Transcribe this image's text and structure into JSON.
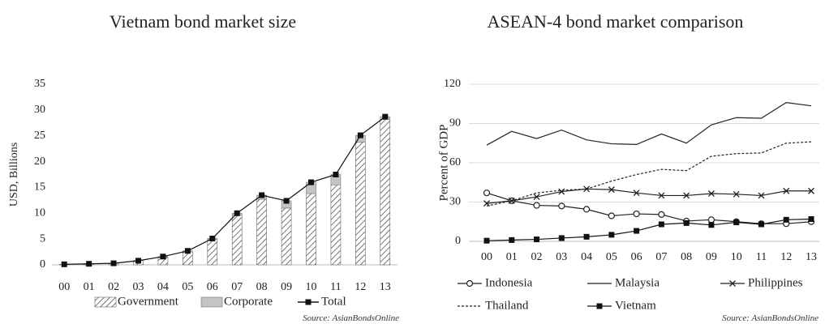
{
  "chart_data": [
    {
      "type": "bar",
      "title": "Vietnam bond market size",
      "ylabel": "USD, Billions",
      "xlabel": "",
      "ylim": [
        0,
        35
      ],
      "yticks": [
        0,
        5,
        10,
        15,
        20,
        25,
        30,
        35
      ],
      "categories": [
        "00",
        "01",
        "02",
        "03",
        "04",
        "05",
        "06",
        "07",
        "08",
        "09",
        "10",
        "11",
        "12",
        "13"
      ],
      "stacked": true,
      "series": [
        {
          "name": "Government",
          "kind": "bar",
          "pattern": "diagonal-hatch",
          "color": "#555555",
          "values": [
            0.1,
            0.2,
            0.3,
            0.8,
            1.5,
            2.5,
            4.9,
            9.6,
            12.7,
            11.0,
            13.8,
            15.5,
            23.8,
            28.2
          ]
        },
        {
          "name": "Corporate",
          "kind": "bar",
          "color": "#c4c4c4",
          "values": [
            0.0,
            0.0,
            0.0,
            0.0,
            0.1,
            0.2,
            0.2,
            0.4,
            0.8,
            1.4,
            2.2,
            2.0,
            1.3,
            0.5
          ]
        },
        {
          "name": "Total",
          "kind": "line",
          "marker": "square",
          "color": "#111111",
          "values": [
            0.1,
            0.2,
            0.3,
            0.8,
            1.6,
            2.7,
            5.1,
            10.0,
            13.5,
            12.4,
            16.0,
            17.5,
            25.1,
            28.7
          ]
        }
      ],
      "legend_position": "bottom",
      "source": "Source: AsianBondsOnline"
    },
    {
      "type": "line",
      "title": "ASEAN-4 bond market comparison",
      "ylabel": "Percent of GDP",
      "xlabel": "",
      "ylim": [
        0,
        120
      ],
      "yticks": [
        0,
        30,
        60,
        90,
        120
      ],
      "categories": [
        "00",
        "01",
        "02",
        "03",
        "04",
        "05",
        "06",
        "07",
        "08",
        "09",
        "10",
        "11",
        "12",
        "13"
      ],
      "series": [
        {
          "name": "Indonesia",
          "marker": "circle-open",
          "dash": "solid",
          "color": "#222222",
          "values": [
            37,
            31,
            27.5,
            27,
            24.5,
            19.5,
            21,
            20.5,
            15.5,
            16.5,
            15,
            13.5,
            13.5,
            15
          ]
        },
        {
          "name": "Malaysia",
          "marker": "none",
          "dash": "solid",
          "color": "#222222",
          "values": [
            73.5,
            84,
            78.5,
            85,
            77.5,
            74.5,
            74,
            82,
            75,
            89,
            94.5,
            94,
            106,
            103.5
          ]
        },
        {
          "name": "Philippines",
          "marker": "x",
          "dash": "solid",
          "color": "#222222",
          "values": [
            29,
            31,
            34,
            38,
            40,
            39.5,
            37,
            35,
            35,
            36.5,
            36,
            35,
            38.5,
            38.5
          ]
        },
        {
          "name": "Thailand",
          "marker": "none",
          "dash": "dashed",
          "color": "#222222",
          "values": [
            27,
            31,
            37,
            39,
            40,
            46,
            51,
            55,
            54,
            65,
            67,
            67.5,
            75,
            76
          ]
        },
        {
          "name": "Vietnam",
          "marker": "square",
          "dash": "solid",
          "color": "#111111",
          "values": [
            0.5,
            1,
            1.5,
            2.5,
            3.5,
            5,
            8,
            13,
            14,
            12.5,
            14.5,
            13,
            16.5,
            17
          ]
        }
      ],
      "legend_position": "bottom",
      "source": "Source: AsianBondsOnline"
    }
  ]
}
